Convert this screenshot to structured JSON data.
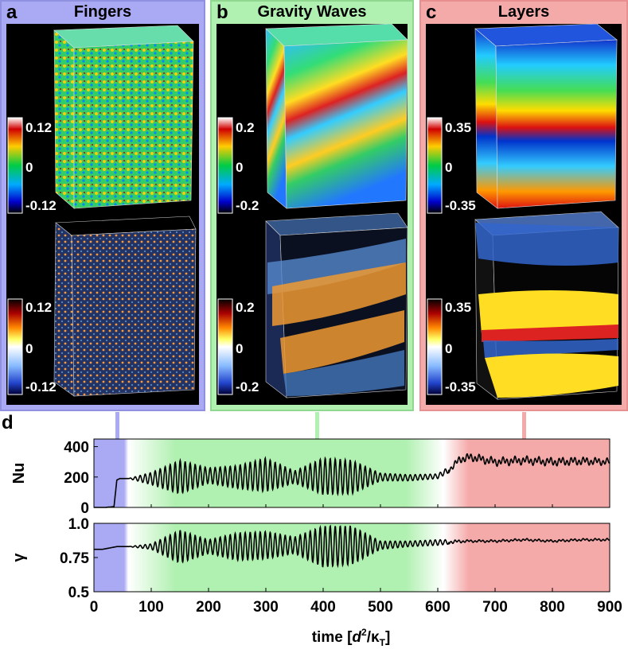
{
  "panels": [
    {
      "letter": "a",
      "title": "Fingers",
      "top_cbar": {
        "max": "0.12",
        "mid": "0",
        "min": "-0.12"
      },
      "bottom_cbar": {
        "max": "0.12",
        "mid": "0",
        "min": "-0.12"
      }
    },
    {
      "letter": "b",
      "title": "Gravity Waves",
      "top_cbar": {
        "max": "0.2",
        "mid": "0",
        "min": "-0.2"
      },
      "bottom_cbar": {
        "max": "0.2",
        "mid": "0",
        "min": "-0.2"
      }
    },
    {
      "letter": "c",
      "title": "Layers",
      "top_cbar": {
        "max": "0.35",
        "mid": "0",
        "min": "-0.35"
      },
      "bottom_cbar": {
        "max": "0.35",
        "mid": "0",
        "min": "-0.35"
      }
    }
  ],
  "panel_d": {
    "letter": "d"
  },
  "colors": {
    "fingers": "#aaaaf4",
    "waves": "#b0f0b0",
    "layers": "#f5aaaa"
  },
  "chart_data": {
    "type": "line",
    "xlabel_prefix": "time [",
    "xlabel_d": "d",
    "xlabel_sup": "2",
    "xlabel_slash": "/κ",
    "xlabel_sub": "T",
    "xlabel_suffix": "]",
    "xlim": [
      0,
      900
    ],
    "xticks": [
      "0",
      "100",
      "200",
      "300",
      "400",
      "500",
      "600",
      "700",
      "800",
      "900"
    ],
    "regions": [
      {
        "name": "Fingers",
        "from": 0,
        "to": 60
      },
      {
        "name": "Gravity Waves",
        "from": 60,
        "to": 610
      },
      {
        "name": "Layers",
        "from": 610,
        "to": 900
      }
    ],
    "series": [
      {
        "name": "Nu",
        "ylabel": "Nu",
        "ylim": [
          0,
          450
        ],
        "yticks": [
          "400",
          "200",
          "0"
        ],
        "x": [
          0,
          20,
          35,
          40,
          45,
          60,
          100,
          150,
          200,
          250,
          300,
          350,
          400,
          450,
          500,
          550,
          600,
          620,
          640,
          660,
          700,
          750,
          800,
          850,
          900
        ],
        "y": [
          0,
          0,
          5,
          180,
          190,
          190,
          190,
          200,
          210,
          200,
          215,
          200,
          205,
          200,
          200,
          195,
          205,
          250,
          320,
          330,
          300,
          310,
          300,
          305,
          300
        ],
        "osc": [
          0,
          0,
          0,
          0,
          0,
          0,
          40,
          110,
          50,
          75,
          110,
          40,
          120,
          110,
          25,
          20,
          15,
          20,
          30,
          30,
          30,
          30,
          30,
          30,
          25
        ]
      },
      {
        "name": "gamma",
        "ylabel": "γ",
        "ylim": [
          0.5,
          1.0
        ],
        "yticks": [
          "1.0",
          "0.75",
          "0.5"
        ],
        "x": [
          0,
          15,
          40,
          60,
          100,
          150,
          200,
          250,
          300,
          350,
          400,
          450,
          500,
          550,
          600,
          650,
          700,
          750,
          800,
          850,
          900
        ],
        "y": [
          0.81,
          0.81,
          0.83,
          0.83,
          0.83,
          0.83,
          0.83,
          0.83,
          0.84,
          0.84,
          0.83,
          0.84,
          0.84,
          0.85,
          0.86,
          0.87,
          0.87,
          0.88,
          0.87,
          0.88,
          0.88
        ],
        "osc": [
          0,
          0,
          0,
          0,
          0.02,
          0.12,
          0.05,
          0.1,
          0.1,
          0.06,
          0.15,
          0.14,
          0.03,
          0.02,
          0.02,
          0.01,
          0.01,
          0.01,
          0.01,
          0.01,
          0.01
        ]
      }
    ]
  }
}
